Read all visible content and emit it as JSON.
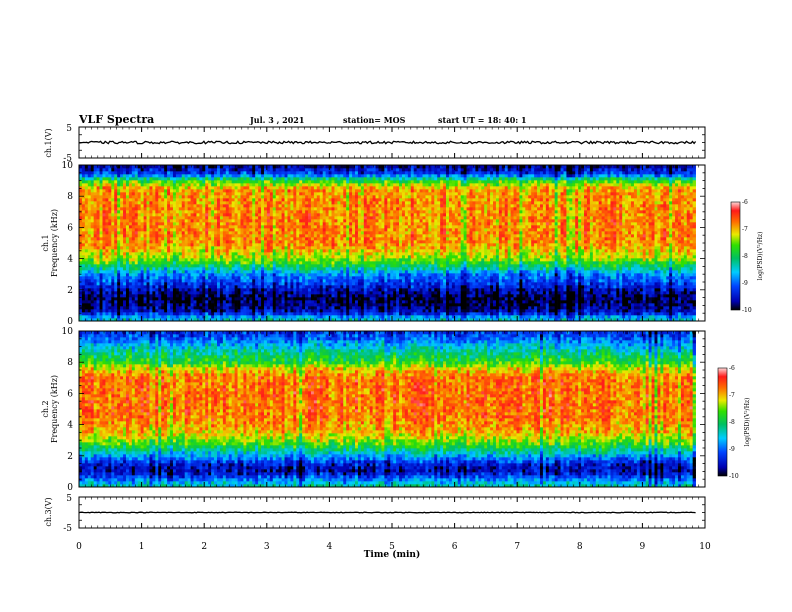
{
  "header": {
    "title": "VLF Spectra",
    "date": "Jul. 3 , 2021",
    "station": "station= MOS",
    "start_ut": "start UT = 18: 40: 1"
  },
  "chart_data": [
    {
      "type": "line",
      "name": "ch1-voltage",
      "ylabel": "ch.1(V)",
      "ylim": [
        -5,
        5
      ],
      "yticks": [
        "5",
        "-5"
      ],
      "xlim": [
        0,
        10
      ],
      "trace_level": 0
    },
    {
      "type": "heatmap",
      "name": "ch1-spectrogram",
      "ylabel": "ch.1\nFrequency (kHz)",
      "ylim": [
        0,
        10
      ],
      "yticks": [
        "0",
        "2",
        "4",
        "6",
        "8",
        "10"
      ],
      "xlim": [
        0,
        10
      ],
      "colorbar": {
        "label": "log(PSD)(V²/Hz)",
        "ticks": [
          "-6",
          "-7",
          "-8",
          "-9",
          "-10"
        ],
        "range": [
          -10,
          -6
        ]
      },
      "band_profile_kHz": [
        [
          0,
          -8.4
        ],
        [
          0.3,
          -8.8
        ],
        [
          0.6,
          -9.6
        ],
        [
          1.0,
          -9.8
        ],
        [
          1.5,
          -9.9
        ],
        [
          2.0,
          -9.6
        ],
        [
          2.6,
          -9.1
        ],
        [
          3.0,
          -8.9
        ],
        [
          3.4,
          -8.2
        ],
        [
          4.0,
          -7.4
        ],
        [
          5.0,
          -6.8
        ],
        [
          7.0,
          -6.8
        ],
        [
          8.5,
          -6.9
        ],
        [
          9.0,
          -7.7
        ],
        [
          9.4,
          -9.1
        ],
        [
          10.0,
          -9.8
        ]
      ],
      "data_end_min": 9.85
    },
    {
      "type": "heatmap",
      "name": "ch2-spectrogram",
      "ylabel": "ch.2\nFrequency (kHz)",
      "ylim": [
        0,
        10
      ],
      "yticks": [
        "0",
        "2",
        "4",
        "6",
        "8",
        "10"
      ],
      "xlim": [
        0,
        10
      ],
      "colorbar": {
        "label": "log(PSD)(V²/Hz)",
        "ticks": [
          "-6",
          "-7",
          "-8",
          "-9",
          "-10"
        ],
        "range": [
          -10,
          -6
        ]
      },
      "band_profile_kHz": [
        [
          0,
          -8.2
        ],
        [
          0.5,
          -8.9
        ],
        [
          1.0,
          -9.6
        ],
        [
          1.5,
          -9.4
        ],
        [
          2.0,
          -8.7
        ],
        [
          2.8,
          -7.6
        ],
        [
          3.5,
          -7.0
        ],
        [
          4.5,
          -6.7
        ],
        [
          7.0,
          -6.7
        ],
        [
          7.6,
          -7.1
        ],
        [
          8.0,
          -7.7
        ],
        [
          8.8,
          -8.3
        ],
        [
          9.4,
          -8.9
        ],
        [
          10.0,
          -9.3
        ]
      ],
      "data_end_min": 9.85
    },
    {
      "type": "line",
      "name": "ch3-voltage",
      "ylabel": "ch.3(V)",
      "ylim": [
        -5,
        5
      ],
      "yticks": [
        "5",
        "-5"
      ],
      "xlim": [
        0,
        10
      ],
      "trace_level": 0
    }
  ],
  "x_axis": {
    "label": "Time (min)",
    "ticks": [
      "0",
      "1",
      "2",
      "3",
      "4",
      "5",
      "6",
      "7",
      "8",
      "9",
      "10"
    ],
    "range": [
      0,
      10
    ]
  }
}
